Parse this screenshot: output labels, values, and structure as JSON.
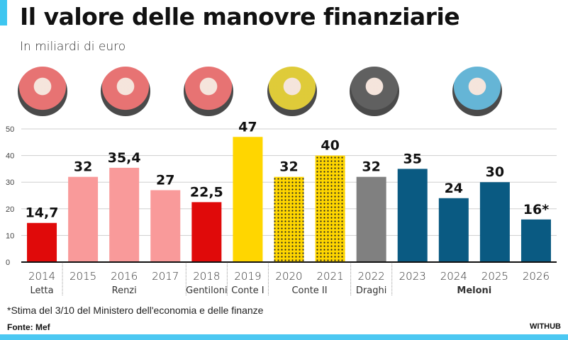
{
  "header": {
    "title": "Il valore delle manovre finanziarie",
    "subtitle": "In miliardi di euro"
  },
  "portraits": [
    {
      "name": "Letta",
      "tint": "#e35a5a"
    },
    {
      "name": "Renzi",
      "tint": "#e35a5a"
    },
    {
      "name": "Gentiloni",
      "tint": "#e35a5a"
    },
    {
      "name": "Conte",
      "tint": "#d9c216"
    },
    {
      "name": "Draghi",
      "tint": "#444444"
    },
    {
      "name": "Meloni",
      "tint": "#4aa8cf"
    }
  ],
  "chart_data": {
    "type": "bar",
    "title": "Il valore delle manovre finanziarie",
    "ylabel": "In miliardi di euro",
    "xlabel": "",
    "ylim": [
      0,
      50
    ],
    "yticks": [
      0,
      10,
      20,
      30,
      40,
      50
    ],
    "grid": true,
    "categories": [
      "2014",
      "2015",
      "2016",
      "2017",
      "2018",
      "2019",
      "2020",
      "2021",
      "2022",
      "2023",
      "2024",
      "2025",
      "2026"
    ],
    "values": [
      14.7,
      32,
      35.4,
      27,
      22.5,
      47,
      32,
      40,
      32,
      35,
      24,
      30,
      16
    ],
    "labels": [
      "14,7",
      "32",
      "35,4",
      "27",
      "22,5",
      "47",
      "32",
      "40",
      "32",
      "35",
      "24",
      "30",
      "16*"
    ],
    "colors": [
      "#e00a0a",
      "#f99a9a",
      "#f99a9a",
      "#f99a9a",
      "#e00a0a",
      "#ffd600",
      "#ffd600",
      "#ffd600",
      "#808080",
      "#0a5a82",
      "#0a5a82",
      "#0a5a82",
      "#0a5a82"
    ],
    "patterns": [
      "solid",
      "solid",
      "solid",
      "solid",
      "solid",
      "solid",
      "dotted",
      "dotted",
      "solid",
      "solid",
      "solid",
      "solid",
      "solid"
    ],
    "governments": [
      {
        "name": "Letta",
        "start": 0,
        "end": 0,
        "bold": false
      },
      {
        "name": "Renzi",
        "start": 1,
        "end": 3,
        "bold": false
      },
      {
        "name": "Gentiloni",
        "start": 4,
        "end": 4,
        "bold": false
      },
      {
        "name": "Conte I",
        "start": 5,
        "end": 5,
        "bold": false
      },
      {
        "name": "Conte II",
        "start": 6,
        "end": 7,
        "bold": false
      },
      {
        "name": "Draghi",
        "start": 8,
        "end": 8,
        "bold": false
      },
      {
        "name": "Meloni",
        "start": 9,
        "end": 12,
        "bold": true
      }
    ]
  },
  "footer": {
    "footnote": "*Stima del 3/10 del Ministero dell'economia e delle finanze",
    "source": "Fonte: Mef",
    "brand": "WITHUB"
  }
}
